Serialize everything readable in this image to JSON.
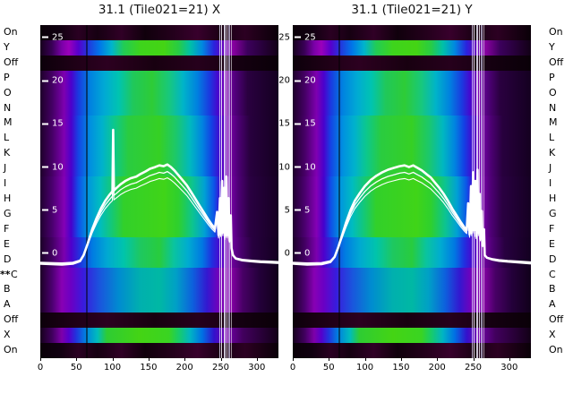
{
  "figure": {
    "background": "#ffffff",
    "row_labels": [
      "On",
      "Y",
      "Off",
      "P",
      "O",
      "N",
      "M",
      "L",
      "K",
      "J",
      "I",
      "H",
      "G",
      "F",
      "E",
      "D",
      "C",
      "B",
      "A",
      "Off",
      "X",
      "On"
    ],
    "row_marker": {
      "text": "**",
      "row_index": 16
    },
    "mid_y_ticks": [
      25,
      20,
      15,
      10,
      5,
      0
    ]
  },
  "chart_data": [
    {
      "type": "heatmap",
      "title": "31.1 (Tile021=21) X",
      "x_ticks": [
        0,
        50,
        100,
        150,
        200,
        250,
        300
      ],
      "y_ticks": [
        25,
        20,
        15,
        10,
        5,
        0
      ],
      "x_range": [
        0,
        330
      ],
      "y_range": [
        -12.1,
        26.45
      ],
      "row_labels": [
        "On",
        "Y",
        "Off",
        "P",
        "O",
        "N",
        "M",
        "L",
        "K",
        "J",
        "I",
        "H",
        "G",
        "F",
        "E",
        "D",
        "C",
        "B",
        "A",
        "Off",
        "X",
        "On"
      ],
      "curve": [
        [
          0,
          -1.2
        ],
        [
          15,
          -1.25
        ],
        [
          30,
          -1.3
        ],
        [
          45,
          -1.2
        ],
        [
          55,
          -0.9
        ],
        [
          60,
          -0.2
        ],
        [
          66,
          1.2
        ],
        [
          72,
          2.8
        ],
        [
          78,
          4.1
        ],
        [
          84,
          5.2
        ],
        [
          90,
          6.1
        ],
        [
          96,
          6.8
        ],
        [
          100,
          7.2
        ],
        [
          101,
          14.3
        ],
        [
          102,
          7.3
        ],
        [
          106,
          7.6
        ],
        [
          111,
          8.0
        ],
        [
          118,
          8.4
        ],
        [
          125,
          8.7
        ],
        [
          133,
          8.9
        ],
        [
          139,
          9.2
        ],
        [
          146,
          9.5
        ],
        [
          152,
          9.8
        ],
        [
          159,
          10.0
        ],
        [
          165,
          10.2
        ],
        [
          171,
          10.1
        ],
        [
          176,
          10.3
        ],
        [
          181,
          10.0
        ],
        [
          186,
          9.6
        ],
        [
          191,
          9.1
        ],
        [
          197,
          8.5
        ],
        [
          203,
          7.9
        ],
        [
          209,
          7.1
        ],
        [
          215,
          6.3
        ],
        [
          221,
          5.5
        ],
        [
          227,
          4.7
        ],
        [
          233,
          3.9
        ],
        [
          238,
          3.3
        ],
        [
          242,
          2.9
        ],
        [
          245,
          4.8
        ],
        [
          247,
          2.1
        ],
        [
          249,
          6.4
        ],
        [
          250,
          2.3
        ],
        [
          252,
          8.4
        ],
        [
          253,
          2.4
        ],
        [
          255,
          7.6
        ],
        [
          256,
          1.9
        ],
        [
          258,
          8.9
        ],
        [
          259,
          2.1
        ],
        [
          261,
          6.4
        ],
        [
          262,
          1.5
        ],
        [
          264,
          4.4
        ],
        [
          265,
          0.6
        ],
        [
          267,
          -0.2
        ],
        [
          271,
          -0.6
        ],
        [
          280,
          -0.8
        ],
        [
          292,
          -0.9
        ],
        [
          305,
          -1.0
        ],
        [
          318,
          -1.05
        ],
        [
          330,
          -1.1
        ]
      ]
    },
    {
      "type": "heatmap",
      "title": "31.1 (Tile021=21) Y",
      "x_ticks": [
        0,
        50,
        100,
        150,
        200,
        250,
        300
      ],
      "y_ticks": [
        25,
        20,
        15,
        10,
        5,
        0
      ],
      "x_range": [
        0,
        330
      ],
      "y_range": [
        -12.1,
        26.45
      ],
      "row_labels": [
        "On",
        "Y",
        "Off",
        "P",
        "O",
        "N",
        "M",
        "L",
        "K",
        "J",
        "I",
        "H",
        "G",
        "F",
        "E",
        "D",
        "C",
        "B",
        "A",
        "Off",
        "X",
        "On"
      ],
      "curve": [
        [
          0,
          -1.2
        ],
        [
          20,
          -1.3
        ],
        [
          40,
          -1.25
        ],
        [
          52,
          -1.0
        ],
        [
          58,
          -0.4
        ],
        [
          63,
          0.7
        ],
        [
          68,
          2.0
        ],
        [
          74,
          3.6
        ],
        [
          80,
          5.0
        ],
        [
          86,
          6.1
        ],
        [
          93,
          7.0
        ],
        [
          100,
          7.8
        ],
        [
          108,
          8.5
        ],
        [
          116,
          9.0
        ],
        [
          124,
          9.4
        ],
        [
          132,
          9.7
        ],
        [
          140,
          9.9
        ],
        [
          148,
          10.1
        ],
        [
          155,
          10.2
        ],
        [
          161,
          10.0
        ],
        [
          167,
          10.2
        ],
        [
          173,
          9.9
        ],
        [
          179,
          9.6
        ],
        [
          185,
          9.2
        ],
        [
          191,
          8.8
        ],
        [
          197,
          8.2
        ],
        [
          203,
          7.6
        ],
        [
          209,
          6.9
        ],
        [
          215,
          6.1
        ],
        [
          221,
          5.2
        ],
        [
          227,
          4.4
        ],
        [
          233,
          3.6
        ],
        [
          238,
          3.0
        ],
        [
          241,
          2.7
        ],
        [
          243,
          5.8
        ],
        [
          245,
          2.2
        ],
        [
          247,
          7.8
        ],
        [
          248,
          2.4
        ],
        [
          250,
          9.4
        ],
        [
          251,
          2.7
        ],
        [
          253,
          8.4
        ],
        [
          254,
          2.0
        ],
        [
          256,
          9.7
        ],
        [
          257,
          2.4
        ],
        [
          259,
          6.9
        ],
        [
          260,
          1.7
        ],
        [
          262,
          4.9
        ],
        [
          263,
          0.9
        ],
        [
          265,
          2.8
        ],
        [
          266,
          -0.2
        ],
        [
          269,
          -0.5
        ],
        [
          276,
          -0.7
        ],
        [
          286,
          -0.85
        ],
        [
          298,
          -0.95
        ],
        [
          314,
          -1.05
        ],
        [
          330,
          -1.15
        ]
      ]
    }
  ],
  "heatmap_render": {
    "profiles": {
      "dark_on": [
        [
          0,
          "#0a0008"
        ],
        [
          8,
          "#100010"
        ],
        [
          16,
          "#2a0022"
        ],
        [
          24,
          "#160012"
        ],
        [
          34,
          "#300026"
        ],
        [
          44,
          "#10000c"
        ],
        [
          56,
          "#24001c"
        ],
        [
          66,
          "#38002c"
        ],
        [
          76,
          "#1a0014"
        ],
        [
          86,
          "#2c0022"
        ],
        [
          100,
          "#0a0008"
        ]
      ],
      "dark_off": [
        [
          0,
          "#0c000a"
        ],
        [
          14,
          "#1e0016"
        ],
        [
          28,
          "#2c0020"
        ],
        [
          48,
          "#180010"
        ],
        [
          66,
          "#26001c"
        ],
        [
          84,
          "#140010"
        ],
        [
          100,
          "#0a0008"
        ]
      ],
      "band_y": [
        [
          0,
          "#16001c"
        ],
        [
          5,
          "#3a0058"
        ],
        [
          9,
          "#7a00a8"
        ],
        [
          12,
          "#9b00bb"
        ],
        [
          16,
          "#5500cc"
        ],
        [
          20,
          "#2236dd"
        ],
        [
          25,
          "#0077e8"
        ],
        [
          30,
          "#00b4cc"
        ],
        [
          35,
          "#22cc55"
        ],
        [
          42,
          "#3ed41c"
        ],
        [
          52,
          "#44d414"
        ],
        [
          58,
          "#28cc44"
        ],
        [
          63,
          "#00c0a8"
        ],
        [
          68,
          "#0088e0"
        ],
        [
          73,
          "#2a22dd"
        ],
        [
          77,
          "#6600bb"
        ],
        [
          81,
          "#8800a0"
        ],
        [
          87,
          "#3c005c"
        ],
        [
          100,
          "#120016"
        ]
      ],
      "band_x": [
        [
          0,
          "#16001c"
        ],
        [
          5,
          "#40005e"
        ],
        [
          9,
          "#7e00aa"
        ],
        [
          12,
          "#5500cc"
        ],
        [
          15,
          "#2233dd"
        ],
        [
          19,
          "#0080e0"
        ],
        [
          24,
          "#00bcbc"
        ],
        [
          28,
          "#2ecc33"
        ],
        [
          42,
          "#44d414"
        ],
        [
          54,
          "#3ad422"
        ],
        [
          58,
          "#18cc66"
        ],
        [
          63,
          "#00b4c4"
        ],
        [
          68,
          "#0070e4"
        ],
        [
          73,
          "#3311cc"
        ],
        [
          78,
          "#7700b0"
        ],
        [
          85,
          "#42005e"
        ],
        [
          100,
          "#120016"
        ]
      ],
      "m1": [
        [
          0,
          "#1e002a"
        ],
        [
          5,
          "#440064"
        ],
        [
          10,
          "#7e00b0"
        ],
        [
          13,
          "#4c00cc"
        ],
        [
          16,
          "#1a3ae0"
        ],
        [
          21,
          "#0082e0"
        ],
        [
          27,
          "#00aad4"
        ],
        [
          33,
          "#00c4b0"
        ],
        [
          39,
          "#20c85a"
        ],
        [
          47,
          "#2ecc36"
        ],
        [
          54,
          "#18c87c"
        ],
        [
          60,
          "#00b4c8"
        ],
        [
          66,
          "#0080e0"
        ],
        [
          71,
          "#1a3ae0"
        ],
        [
          75,
          "#4c00cc"
        ],
        [
          78,
          "#7e00b0"
        ],
        [
          82,
          "#50007a"
        ],
        [
          87,
          "#2a0040"
        ],
        [
          100,
          "#140020"
        ]
      ],
      "m2": [
        [
          0,
          "#1e002a"
        ],
        [
          5,
          "#460066"
        ],
        [
          10,
          "#8000b2"
        ],
        [
          13,
          "#4a00cc"
        ],
        [
          16,
          "#1444e4"
        ],
        [
          21,
          "#0090e0"
        ],
        [
          26,
          "#00b2cc"
        ],
        [
          31,
          "#0cc88c"
        ],
        [
          37,
          "#2acc40"
        ],
        [
          50,
          "#36d024"
        ],
        [
          57,
          "#1cc86a"
        ],
        [
          63,
          "#00b8c0"
        ],
        [
          68,
          "#0084e0"
        ],
        [
          72,
          "#1440e4"
        ],
        [
          76,
          "#4a00cc"
        ],
        [
          79,
          "#7e00b0"
        ],
        [
          83,
          "#4e0076"
        ],
        [
          88,
          "#28003e"
        ],
        [
          100,
          "#140020"
        ]
      ],
      "m3": [
        [
          0,
          "#200030"
        ],
        [
          5,
          "#4a006e"
        ],
        [
          10,
          "#8400b6"
        ],
        [
          13,
          "#4600cc"
        ],
        [
          16,
          "#0f50e8"
        ],
        [
          20,
          "#0096de"
        ],
        [
          25,
          "#00bcc0"
        ],
        [
          30,
          "#14c876"
        ],
        [
          35,
          "#32d02a"
        ],
        [
          52,
          "#40d418"
        ],
        [
          58,
          "#2ed02e"
        ],
        [
          64,
          "#0cc490"
        ],
        [
          69,
          "#00a0d4"
        ],
        [
          73,
          "#0d54e8"
        ],
        [
          76,
          "#4600cc"
        ],
        [
          79,
          "#8400b6"
        ],
        [
          83,
          "#500078"
        ],
        [
          88,
          "#2a0042"
        ],
        [
          100,
          "#150022"
        ]
      ],
      "m4": [
        [
          0,
          "#1c0028"
        ],
        [
          5,
          "#420062"
        ],
        [
          10,
          "#7c00ae"
        ],
        [
          13,
          "#4e00cc"
        ],
        [
          17,
          "#1c38e0"
        ],
        [
          22,
          "#007ce2"
        ],
        [
          28,
          "#00a8d2"
        ],
        [
          35,
          "#00c4ac"
        ],
        [
          42,
          "#1ec860"
        ],
        [
          50,
          "#28cc3e"
        ],
        [
          56,
          "#0ac49e"
        ],
        [
          62,
          "#00acd0"
        ],
        [
          68,
          "#0078e2"
        ],
        [
          72,
          "#2030e0"
        ],
        [
          76,
          "#5000cc"
        ],
        [
          79,
          "#7c00ae"
        ],
        [
          84,
          "#4c0072"
        ],
        [
          89,
          "#280040"
        ],
        [
          100,
          "#130020"
        ]
      ],
      "m5": [
        [
          0,
          "#1c0026"
        ],
        [
          5,
          "#4c0070"
        ],
        [
          9,
          "#8800b4"
        ],
        [
          13,
          "#6a00c4"
        ],
        [
          18,
          "#3a1add"
        ],
        [
          25,
          "#1a55dd"
        ],
        [
          33,
          "#008cd0"
        ],
        [
          42,
          "#00b0ae"
        ],
        [
          50,
          "#00b8a4"
        ],
        [
          57,
          "#00a0c6"
        ],
        [
          64,
          "#0d60dd"
        ],
        [
          70,
          "#3318d0"
        ],
        [
          75,
          "#7400bb"
        ],
        [
          80,
          "#8800a8"
        ],
        [
          85,
          "#480066"
        ],
        [
          92,
          "#24003a"
        ],
        [
          100,
          "#11001a"
        ]
      ]
    },
    "row_profile_map": [
      "dark_on",
      "band_y",
      "dark_off",
      "m1",
      "m1",
      "m1",
      "m2",
      "m2",
      "m2",
      "m2",
      "m3",
      "m3",
      "m3",
      "m3",
      "m4",
      "m4",
      "m5",
      "m5",
      "m5",
      "dark_off",
      "band_x",
      "dark_on"
    ],
    "stripes": [
      {
        "x": 63,
        "w": 2,
        "color": "#000000",
        "opacity": 0.5
      },
      {
        "x": 248,
        "w": 1.5,
        "color": "#e8e8ff",
        "opacity": 0.75
      },
      {
        "x": 251,
        "w": 1,
        "color": "#ffffff",
        "opacity": 0.85
      },
      {
        "x": 254,
        "w": 2,
        "color": "#f2f2ff",
        "opacity": 0.8
      },
      {
        "x": 258,
        "w": 1,
        "color": "#ffffff",
        "opacity": 0.75
      },
      {
        "x": 261,
        "w": 1.5,
        "color": "#d8d8f6",
        "opacity": 0.65
      },
      {
        "x": 264,
        "w": 1,
        "color": "#ffffff",
        "opacity": 0.55
      }
    ]
  }
}
